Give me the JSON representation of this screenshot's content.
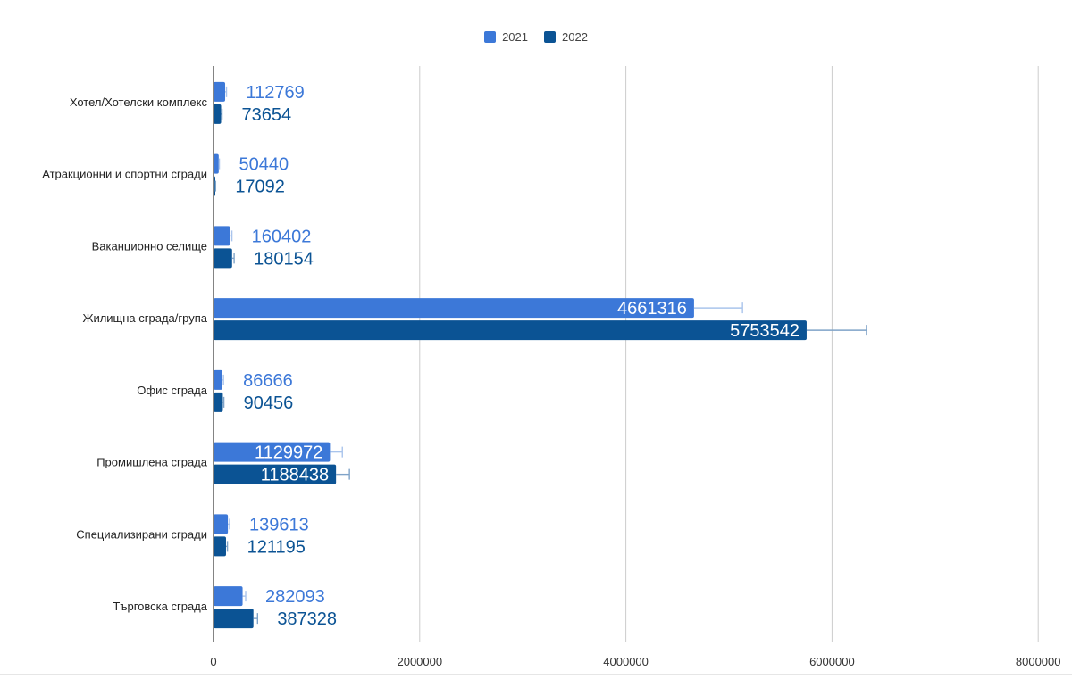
{
  "chart_data": {
    "type": "bar",
    "orientation": "horizontal",
    "title": "",
    "xlabel": "",
    "ylabel": "",
    "categories": [
      "Хотел/Хотелски комплекс",
      "Атракционни и спортни сгради",
      "Ваканционно селище",
      "Жилищна сграда/група",
      "Офис сграда",
      "Промишлена сграда",
      "Специализирани сгради",
      "Търговска сграда"
    ],
    "series": [
      {
        "name": "2021",
        "color": "#3c78d8",
        "values": [
          112769,
          50440,
          160402,
          4661316,
          86666,
          1129972,
          139613,
          282093
        ],
        "labels": [
          "112769",
          "50440",
          "160402",
          "4661316",
          "86666",
          "1129972",
          "139613",
          "282093"
        ],
        "error_upper": [
          13000,
          6000,
          18000,
          470000,
          10000,
          120000,
          16000,
          30000
        ]
      },
      {
        "name": "2022",
        "color": "#0b5394",
        "values": [
          73654,
          17092,
          180154,
          5753542,
          90456,
          1188438,
          121195,
          387328
        ],
        "labels": [
          "73654",
          "17092",
          "180154",
          "5753542",
          "90456",
          "1188438",
          "121195",
          "387328"
        ],
        "error_upper": [
          9000,
          3000,
          20000,
          580000,
          10000,
          130000,
          14000,
          40000
        ]
      }
    ],
    "xlim": [
      0,
      8000000
    ],
    "xticks": [
      0,
      2000000,
      4000000,
      6000000,
      8000000
    ],
    "xtick_labels": [
      "0",
      "2000000",
      "4000000",
      "6000000",
      "8000000"
    ],
    "grid": true,
    "legend": "top-center"
  }
}
